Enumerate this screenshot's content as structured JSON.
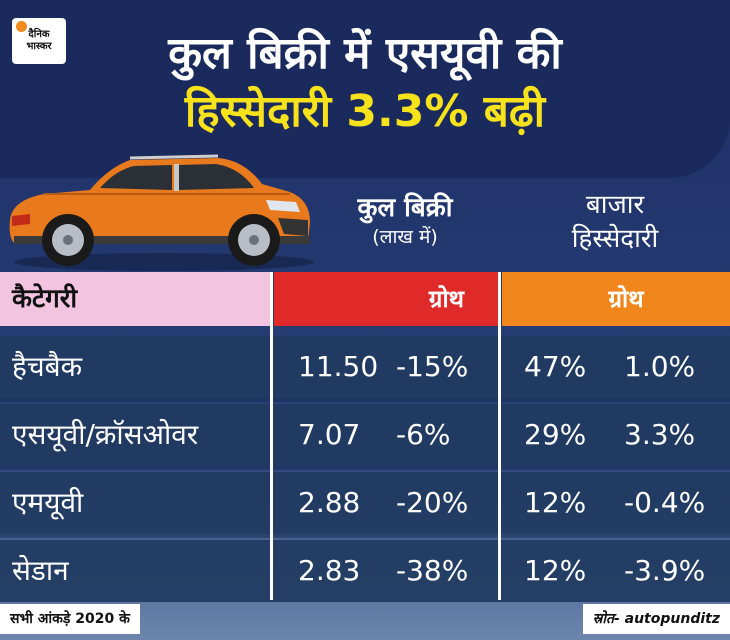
{
  "brand": {
    "logo_line1": "दैनिक",
    "logo_line2": "भास्कर"
  },
  "title": {
    "line1": "कुल बिक्री में एसयूवी की",
    "line2": "हिस्सेदारी 3.3% बढ़ी"
  },
  "columns": {
    "sales_line1": "कुल बिक्री",
    "sales_line2": "(लाख में)",
    "share_line1": "बाजार",
    "share_line2": "हिस्सेदारी",
    "category": "कैटेगरी",
    "growth1": "ग्रोथ",
    "growth2": "ग्रोथ"
  },
  "chart_data": {
    "type": "table",
    "rows": [
      {
        "category": "हैचबैक",
        "sales": "11.50",
        "sales_growth": "-15%",
        "share": "47%",
        "share_growth": "1.0%"
      },
      {
        "category": "एसयूवी/क्रॉसओवर",
        "sales": "7.07",
        "sales_growth": "-6%",
        "share": "29%",
        "share_growth": "3.3%"
      },
      {
        "category": "एमयूवी",
        "sales": "2.88",
        "sales_growth": "-20%",
        "share": "12%",
        "share_growth": "-0.4%"
      },
      {
        "category": "सेडान",
        "sales": "2.83",
        "sales_growth": "-38%",
        "share": "12%",
        "share_growth": "-3.9%"
      }
    ]
  },
  "footer": {
    "note": "सभी आंकड़े 2020 के",
    "source": "स्रोत- autopunditz"
  },
  "colors": {
    "header_bg": "#1a2a5c",
    "title_accent": "#f7e21c",
    "growth1_bg": "#e02a2a",
    "growth2_bg": "#f1861d",
    "category_bg": "#f2c4df",
    "car_body": "#e8791c"
  }
}
